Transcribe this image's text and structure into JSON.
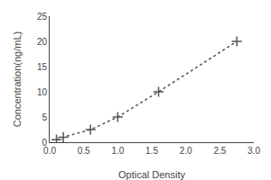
{
  "chart_data": {
    "type": "line",
    "x": [
      0.1,
      0.2,
      0.6,
      1.0,
      1.6,
      2.75
    ],
    "values": [
      0.5,
      1.0,
      2.5,
      5.0,
      10.0,
      20.0
    ],
    "xlabel": "Optical Density",
    "ylabel": "Concentration(ng/mL)",
    "xlim": [
      0,
      3
    ],
    "ylim": [
      0,
      25
    ],
    "xticks": [
      {
        "value": 0,
        "label": "0.0"
      },
      {
        "value": 0.5,
        "label": "0.5"
      },
      {
        "value": 1,
        "label": "1.0"
      },
      {
        "value": 1.5,
        "label": "1.5"
      },
      {
        "value": 2,
        "label": "2.0"
      },
      {
        "value": 2.5,
        "label": "2.5"
      },
      {
        "value": 3,
        "label": "3.0"
      }
    ],
    "yticks": [
      0,
      5,
      10,
      15,
      20,
      25
    ],
    "color": "#555555",
    "marker": "+",
    "line_style": "dotted",
    "grid": false
  }
}
